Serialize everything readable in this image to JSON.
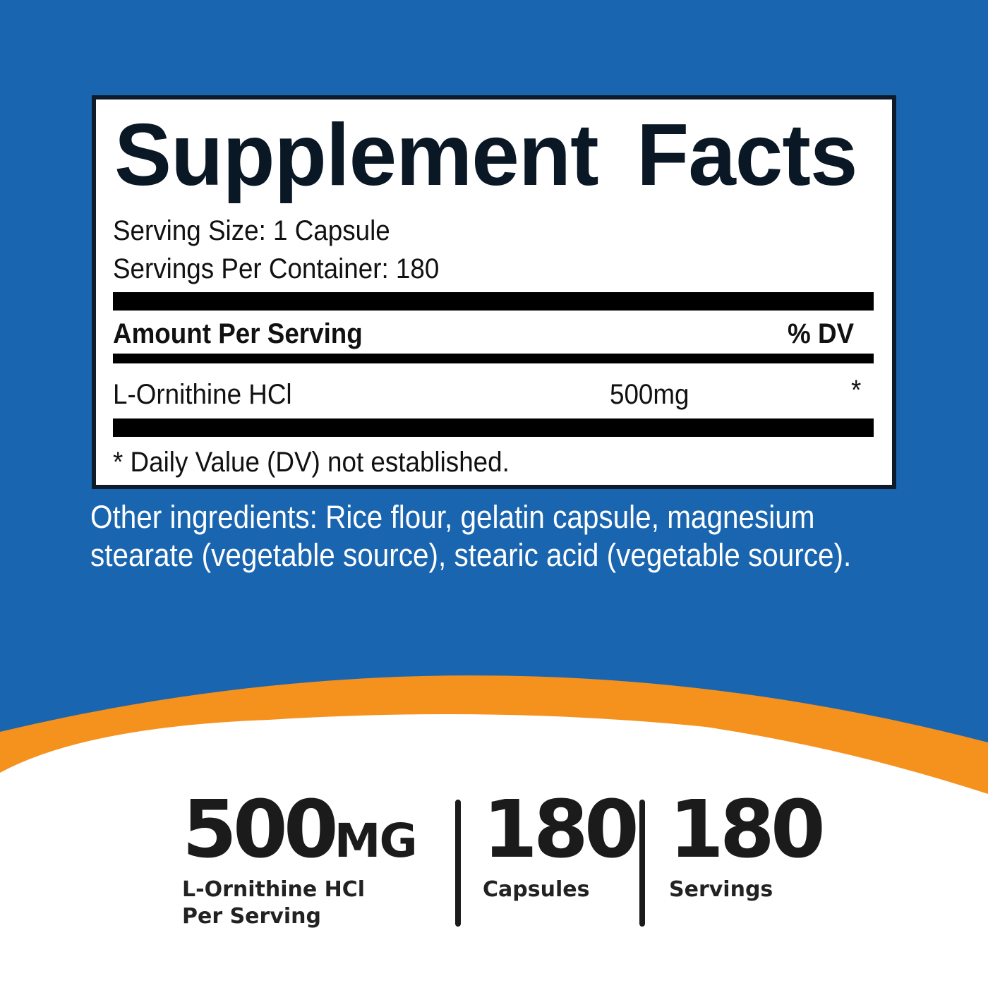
{
  "colors": {
    "background": "#1a65b0",
    "accent": "#f5921e",
    "text": "#0a1724"
  },
  "label": {
    "title": "Supplement Facts",
    "serving_size": "Serving Size: 1 Capsule",
    "servings_per_container": "Servings Per Container: 180",
    "amount_header": "Amount Per Serving",
    "dv_header": "% DV",
    "ingredients": [
      {
        "name": "L-Ornithine HCl",
        "amount": "500mg",
        "dv": "*"
      }
    ],
    "footnote": "* Daily Value (DV) not established."
  },
  "other_ingredients": "Other ingredients: Rice flour, gelatin capsule, magnesium stearate (vegetable source), stearic acid (vegetable source).",
  "stats": [
    {
      "value": "500",
      "unit": "MG",
      "label_line1": "L-Ornithine HCl",
      "label_line2": "Per Serving"
    },
    {
      "value": "180",
      "label_line1": "Capsules"
    },
    {
      "value": "180",
      "label_line1": "Servings"
    }
  ]
}
